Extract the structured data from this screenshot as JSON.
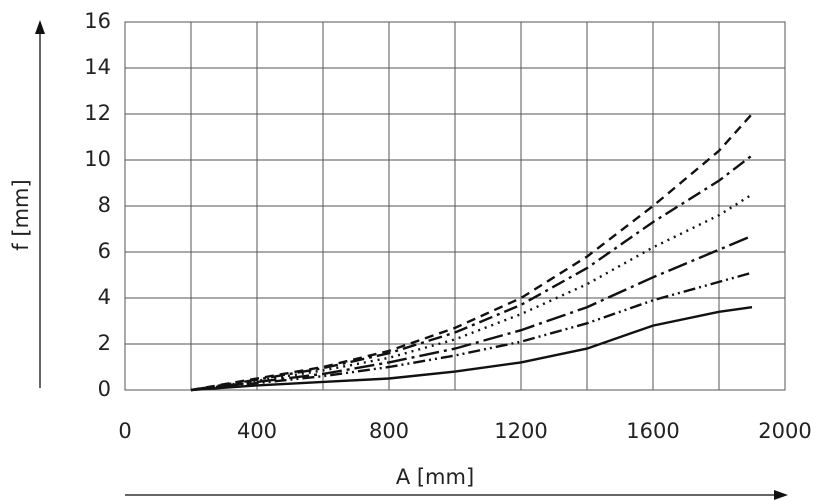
{
  "chart_data": {
    "type": "line",
    "xlabel": "A [mm]",
    "ylabel": "f [mm]",
    "x": [
      200,
      400,
      600,
      800,
      1000,
      1200,
      1400,
      1600,
      1800,
      1900
    ],
    "series": [
      {
        "color": "#111111",
        "dash": "9 6",
        "values": [
          0,
          0.5,
          1.0,
          1.7,
          2.7,
          4.0,
          5.8,
          8.0,
          10.4,
          12.0
        ]
      },
      {
        "color": "#111111",
        "dash": "14 5 3 5",
        "values": [
          0,
          0.45,
          0.95,
          1.6,
          2.5,
          3.7,
          5.3,
          7.3,
          9.1,
          10.2
        ]
      },
      {
        "color": "#111111",
        "dash": "2 5",
        "values": [
          0,
          0.4,
          0.85,
          1.4,
          2.2,
          3.3,
          4.6,
          6.2,
          7.6,
          8.5
        ]
      },
      {
        "color": "#111111",
        "dash": "20 5 3 5",
        "values": [
          0,
          0.35,
          0.7,
          1.2,
          1.8,
          2.6,
          3.6,
          4.9,
          6.1,
          6.7
        ]
      },
      {
        "color": "#111111",
        "dash": "12 4 2 4 2 4",
        "values": [
          0,
          0.3,
          0.6,
          1.0,
          1.5,
          2.1,
          2.9,
          3.9,
          4.7,
          5.1
        ]
      },
      {
        "color": "#111111",
        "dash": "none",
        "values": [
          0,
          0.2,
          0.35,
          0.5,
          0.8,
          1.2,
          1.8,
          2.8,
          3.4,
          3.6
        ]
      }
    ],
    "xlim": [
      0,
      2000
    ],
    "xticks": [
      0,
      400,
      800,
      1200,
      1600,
      2000
    ],
    "x_minor_grid": [
      200,
      600,
      1000,
      1400,
      1800
    ],
    "ylim": [
      0,
      16
    ],
    "yticks": [
      0,
      2,
      4,
      6,
      8,
      10,
      12,
      14,
      16
    ],
    "grid": true
  }
}
